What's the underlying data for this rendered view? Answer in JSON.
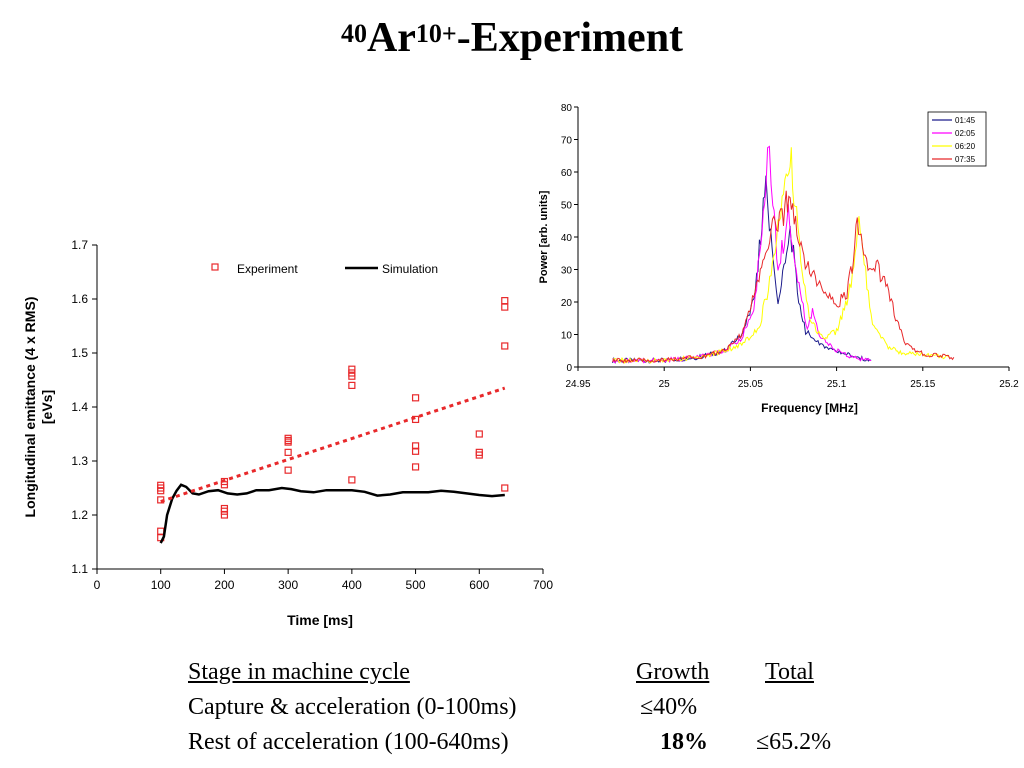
{
  "title": {
    "mass": "40",
    "element": "Ar",
    "charge": "10+",
    "rest": "-Experiment"
  },
  "table": {
    "headers": [
      "Stage in machine cycle",
      "Growth",
      "Total"
    ],
    "rows": [
      {
        "stage": "Capture & acceleration (0-100ms)",
        "growth": "≤40%",
        "total": ""
      },
      {
        "stage": "Rest of acceleration (100-640ms)",
        "growth": "18%",
        "total": "≤65.2%"
      }
    ]
  },
  "chart_data": [
    {
      "type": "scatter",
      "title": "",
      "xlabel": "Time [ms]",
      "ylabel": "Longitudinal emittance (4 x RMS) [eVs]",
      "xlim": [
        0,
        700
      ],
      "ylim": [
        1.1,
        1.7
      ],
      "xticks": [
        "0",
        "100",
        "200",
        "300",
        "400",
        "500",
        "600",
        "700"
      ],
      "yticks": [
        "1.1",
        "1.2",
        "1.3",
        "1.4",
        "1.5",
        "1.6",
        "1.7"
      ],
      "legend": "top",
      "series": [
        {
          "name": "Experiment",
          "kind": "scatter",
          "marker": "open-square",
          "color": "#e8292b",
          "points": [
            [
              100,
              1.255
            ],
            [
              100,
              1.25
            ],
            [
              100,
              1.245
            ],
            [
              100,
              1.228
            ],
            [
              100,
              1.17
            ],
            [
              100,
              1.158
            ],
            [
              200,
              1.262
            ],
            [
              200,
              1.256
            ],
            [
              200,
              1.212
            ],
            [
              200,
              1.207
            ],
            [
              200,
              1.2
            ],
            [
              300,
              1.342
            ],
            [
              300,
              1.338
            ],
            [
              300,
              1.335
            ],
            [
              300,
              1.316
            ],
            [
              300,
              1.283
            ],
            [
              400,
              1.47
            ],
            [
              400,
              1.463
            ],
            [
              400,
              1.457
            ],
            [
              400,
              1.44
            ],
            [
              400,
              1.265
            ],
            [
              500,
              1.417
            ],
            [
              500,
              1.377
            ],
            [
              500,
              1.328
            ],
            [
              500,
              1.318
            ],
            [
              500,
              1.289
            ],
            [
              600,
              1.35
            ],
            [
              600,
              1.316
            ],
            [
              600,
              1.311
            ],
            [
              640,
              1.597
            ],
            [
              640,
              1.585
            ],
            [
              640,
              1.513
            ],
            [
              640,
              1.25
            ]
          ]
        },
        {
          "name": "Simulation",
          "kind": "line",
          "color": "#000000",
          "points": [
            [
              100,
              1.148
            ],
            [
              105,
              1.16
            ],
            [
              110,
              1.2
            ],
            [
              118,
              1.23
            ],
            [
              125,
              1.245
            ],
            [
              132,
              1.256
            ],
            [
              140,
              1.252
            ],
            [
              150,
              1.24
            ],
            [
              160,
              1.238
            ],
            [
              175,
              1.244
            ],
            [
              190,
              1.246
            ],
            [
              205,
              1.24
            ],
            [
              220,
              1.238
            ],
            [
              235,
              1.24
            ],
            [
              250,
              1.246
            ],
            [
              270,
              1.246
            ],
            [
              290,
              1.25
            ],
            [
              305,
              1.248
            ],
            [
              320,
              1.244
            ],
            [
              340,
              1.242
            ],
            [
              360,
              1.246
            ],
            [
              400,
              1.246
            ],
            [
              420,
              1.243
            ],
            [
              440,
              1.236
            ],
            [
              460,
              1.238
            ],
            [
              480,
              1.242
            ],
            [
              520,
              1.242
            ],
            [
              540,
              1.245
            ],
            [
              560,
              1.243
            ],
            [
              600,
              1.237
            ],
            [
              620,
              1.235
            ],
            [
              640,
              1.237
            ]
          ]
        },
        {
          "name": "",
          "kind": "trend",
          "color": "#e8292b",
          "points": [
            [
              100,
              1.225
            ],
            [
              640,
              1.435
            ]
          ]
        }
      ]
    },
    {
      "type": "line",
      "title": "",
      "xlabel": "Frequency [MHz]",
      "ylabel": "Power [arb. units]",
      "xlim": [
        24.95,
        25.2
      ],
      "ylim": [
        0,
        80
      ],
      "xticks": [
        "24.95",
        "25",
        "25.05",
        "25.1",
        "25.15",
        "25.2"
      ],
      "yticks": [
        "0",
        "10",
        "20",
        "30",
        "40",
        "50",
        "60",
        "70",
        "80"
      ],
      "legend": "top-right",
      "series": [
        {
          "name": "01:45",
          "color": "#1c1c8c",
          "points": [
            [
              24.97,
              2
            ],
            [
              25.0,
              2
            ],
            [
              25.02,
              3
            ],
            [
              25.035,
              5
            ],
            [
              25.045,
              10
            ],
            [
              25.052,
              20
            ],
            [
              25.056,
              40
            ],
            [
              25.059,
              57
            ],
            [
              25.061,
              45
            ],
            [
              25.064,
              28
            ],
            [
              25.066,
              19
            ],
            [
              25.068,
              25
            ],
            [
              25.071,
              34
            ],
            [
              25.073,
              42
            ],
            [
              25.075,
              35
            ],
            [
              25.078,
              20
            ],
            [
              25.082,
              11
            ],
            [
              25.09,
              7
            ],
            [
              25.1,
              5
            ],
            [
              25.11,
              3
            ],
            [
              25.12,
              2
            ]
          ]
        },
        {
          "name": "02:05",
          "color": "#ff00ff",
          "points": [
            [
              24.97,
              2
            ],
            [
              25.0,
              2
            ],
            [
              25.02,
              3
            ],
            [
              25.035,
              5
            ],
            [
              25.045,
              9
            ],
            [
              25.052,
              18
            ],
            [
              25.056,
              38
            ],
            [
              25.059,
              55
            ],
            [
              25.061,
              69
            ],
            [
              25.063,
              50
            ],
            [
              25.066,
              30
            ],
            [
              25.069,
              38
            ],
            [
              25.072,
              47
            ],
            [
              25.075,
              38
            ],
            [
              25.079,
              22
            ],
            [
              25.083,
              12
            ],
            [
              25.086,
              17
            ],
            [
              25.09,
              10
            ],
            [
              25.1,
              5
            ],
            [
              25.11,
              3
            ],
            [
              25.12,
              2
            ]
          ]
        },
        {
          "name": "06:20",
          "color": "#ffff00",
          "points": [
            [
              24.97,
              2
            ],
            [
              25.0,
              2
            ],
            [
              25.02,
              3
            ],
            [
              25.035,
              5
            ],
            [
              25.045,
              7
            ],
            [
              25.055,
              12
            ],
            [
              25.062,
              28
            ],
            [
              25.066,
              42
            ],
            [
              25.07,
              58
            ],
            [
              25.073,
              67
            ],
            [
              25.076,
              50
            ],
            [
              25.08,
              28
            ],
            [
              25.085,
              14
            ],
            [
              25.092,
              9
            ],
            [
              25.1,
              11
            ],
            [
              25.106,
              20
            ],
            [
              25.11,
              30
            ],
            [
              25.113,
              44
            ],
            [
              25.116,
              32
            ],
            [
              25.12,
              15
            ],
            [
              25.13,
              6
            ],
            [
              25.14,
              4
            ],
            [
              25.15,
              4
            ],
            [
              25.165,
              3
            ]
          ]
        },
        {
          "name": "07:35",
          "color": "#e8292b",
          "points": [
            [
              24.97,
              2
            ],
            [
              25.0,
              2
            ],
            [
              25.02,
              3
            ],
            [
              25.035,
              5
            ],
            [
              25.045,
              10
            ],
            [
              25.052,
              22
            ],
            [
              25.058,
              35
            ],
            [
              25.062,
              42
            ],
            [
              25.066,
              45
            ],
            [
              25.07,
              48
            ],
            [
              25.073,
              55
            ],
            [
              25.077,
              42
            ],
            [
              25.081,
              33
            ],
            [
              25.086,
              28
            ],
            [
              25.091,
              24
            ],
            [
              25.096,
              21
            ],
            [
              25.101,
              20
            ],
            [
              25.106,
              23
            ],
            [
              25.109,
              31
            ],
            [
              25.112,
              48
            ],
            [
              25.115,
              35
            ],
            [
              25.119,
              28
            ],
            [
              25.123,
              31
            ],
            [
              25.127,
              27
            ],
            [
              25.131,
              22
            ],
            [
              25.135,
              14
            ],
            [
              25.14,
              7
            ],
            [
              25.15,
              4
            ],
            [
              25.168,
              3
            ]
          ]
        }
      ]
    }
  ]
}
